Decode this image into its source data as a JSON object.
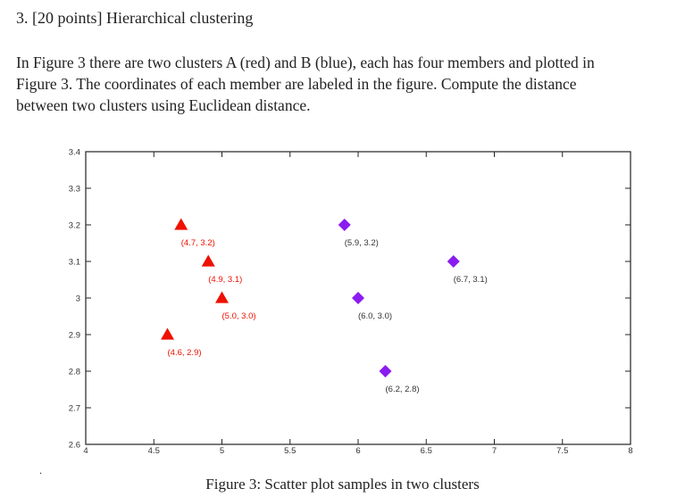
{
  "question": {
    "heading": "3.  [20 points] Hierarchical clustering",
    "body_lines": [
      "In Figure 3 there are two clusters A (red) and B (blue), each has four members and plotted in",
      "Figure 3. The coordinates of each member are labeled in the figure. Compute the distance",
      "between two clusters using Euclidean distance."
    ],
    "bullet": "."
  },
  "figure": {
    "caption": "Figure 3: Scatter plot samples in two clusters"
  },
  "chart_data": {
    "type": "scatter",
    "xlim": [
      4,
      8
    ],
    "ylim": [
      2.6,
      3.4
    ],
    "x_ticks": [
      "4",
      "4.5",
      "5",
      "5.5",
      "6",
      "6.5",
      "7",
      "7.5",
      "8"
    ],
    "y_ticks": [
      "2.6",
      "2.7",
      "2.8",
      "2.9",
      "3",
      "3.1",
      "3.2",
      "3.3",
      "3.4"
    ],
    "grid": false,
    "series": [
      {
        "color": "#ee1100",
        "marker": "triangle",
        "points": [
          {
            "x": 4.7,
            "y": 3.2,
            "label": "(4.7, 3.2)"
          },
          {
            "x": 4.9,
            "y": 3.1,
            "label": "(4.9, 3.1)"
          },
          {
            "x": 5.0,
            "y": 3.0,
            "label": "(5.0, 3.0)"
          },
          {
            "x": 4.6,
            "y": 2.9,
            "label": "(4.6, 2.9)"
          }
        ]
      },
      {
        "color": "#8a1cf0",
        "label_color": "#333333",
        "marker": "diamond",
        "points": [
          {
            "x": 5.9,
            "y": 3.2,
            "label": "(5.9, 3.2)"
          },
          {
            "x": 6.7,
            "y": 3.1,
            "label": "(6.7, 3.1)"
          },
          {
            "x": 6.0,
            "y": 3.0,
            "label": "(6.0, 3.0)"
          },
          {
            "x": 6.2,
            "y": 2.8,
            "label": "(6.2, 2.8)"
          }
        ]
      }
    ]
  }
}
